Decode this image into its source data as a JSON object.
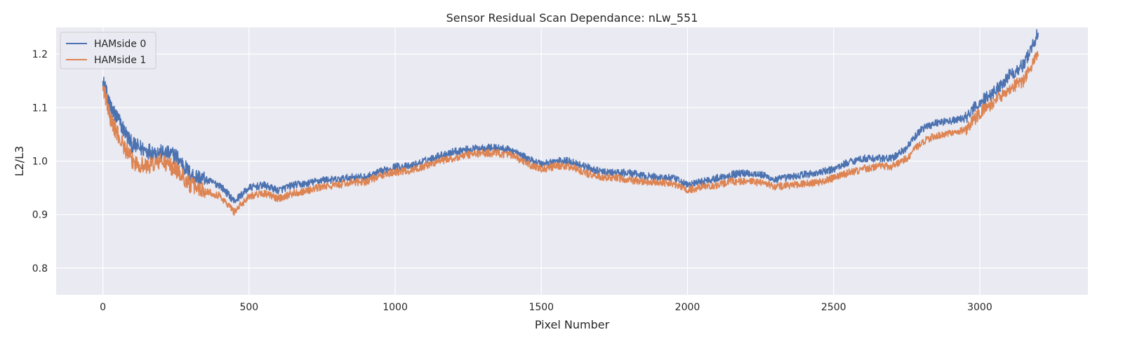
{
  "chart_data": {
    "type": "line",
    "title": "Sensor Residual Scan Dependance: nLw_551",
    "xlabel": "Pixel Number",
    "ylabel": "L2/L3",
    "xlim": [
      -160,
      3370
    ],
    "ylim": [
      0.75,
      1.25
    ],
    "xticks": [
      0,
      500,
      1000,
      1500,
      2000,
      2500,
      3000
    ],
    "yticks": [
      0.8,
      0.9,
      1.0,
      1.1,
      1.2
    ],
    "xtick_labels": [
      "0",
      "500",
      "1000",
      "1500",
      "2000",
      "2500",
      "3000"
    ],
    "ytick_labels": [
      "0.8",
      "0.9",
      "1.0",
      "1.1",
      "1.2"
    ],
    "grid": true,
    "legend_position": "top-left",
    "background_color": "#eaeaf2",
    "grid_color": "#ffffff",
    "series": [
      {
        "name": "HAMside 0",
        "color": "#4c72b0",
        "x": [
          0,
          25,
          50,
          100,
          150,
          200,
          250,
          300,
          350,
          400,
          450,
          500,
          550,
          600,
          650,
          700,
          750,
          800,
          850,
          900,
          950,
          1000,
          1050,
          1100,
          1150,
          1200,
          1250,
          1300,
          1350,
          1400,
          1450,
          1500,
          1550,
          1600,
          1650,
          1700,
          1750,
          1800,
          1850,
          1900,
          1950,
          2000,
          2050,
          2100,
          2150,
          2200,
          2250,
          2300,
          2350,
          2400,
          2450,
          2500,
          2550,
          2600,
          2650,
          2700,
          2750,
          2800,
          2850,
          2900,
          2950,
          3000,
          3050,
          3100,
          3150,
          3200
        ],
        "values": [
          1.15,
          1.1,
          1.08,
          1.03,
          1.02,
          1.015,
          1.01,
          0.975,
          0.965,
          0.955,
          0.925,
          0.95,
          0.955,
          0.945,
          0.955,
          0.958,
          0.965,
          0.965,
          0.97,
          0.97,
          0.98,
          0.99,
          0.99,
          1.0,
          1.01,
          1.018,
          1.022,
          1.025,
          1.025,
          1.02,
          1.005,
          0.995,
          1.0,
          1.0,
          0.99,
          0.98,
          0.978,
          0.978,
          0.972,
          0.97,
          0.968,
          0.955,
          0.962,
          0.968,
          0.975,
          0.978,
          0.975,
          0.965,
          0.97,
          0.975,
          0.978,
          0.985,
          0.998,
          1.005,
          1.005,
          1.005,
          1.025,
          1.06,
          1.072,
          1.075,
          1.08,
          1.11,
          1.13,
          1.16,
          1.18,
          1.24
        ]
      },
      {
        "name": "HAMside 1",
        "color": "#dd8452",
        "x": [
          0,
          25,
          50,
          100,
          150,
          200,
          250,
          300,
          350,
          400,
          450,
          500,
          550,
          600,
          650,
          700,
          750,
          800,
          850,
          900,
          950,
          1000,
          1050,
          1100,
          1150,
          1200,
          1250,
          1300,
          1350,
          1400,
          1450,
          1500,
          1550,
          1600,
          1650,
          1700,
          1750,
          1800,
          1850,
          1900,
          1950,
          2000,
          2050,
          2100,
          2150,
          2200,
          2250,
          2300,
          2350,
          2400,
          2450,
          2500,
          2550,
          2600,
          2650,
          2700,
          2750,
          2800,
          2850,
          2900,
          2950,
          3000,
          3050,
          3100,
          3150,
          3200
        ],
        "values": [
          1.14,
          1.08,
          1.05,
          1.0,
          0.99,
          1.0,
          0.985,
          0.955,
          0.945,
          0.935,
          0.905,
          0.935,
          0.94,
          0.93,
          0.94,
          0.945,
          0.952,
          0.955,
          0.96,
          0.962,
          0.972,
          0.98,
          0.982,
          0.99,
          1.0,
          1.005,
          1.012,
          1.015,
          1.015,
          1.01,
          0.995,
          0.985,
          0.99,
          0.99,
          0.978,
          0.97,
          0.968,
          0.965,
          0.962,
          0.96,
          0.958,
          0.945,
          0.952,
          0.955,
          0.962,
          0.962,
          0.96,
          0.952,
          0.955,
          0.958,
          0.96,
          0.968,
          0.978,
          0.985,
          0.99,
          0.99,
          1.005,
          1.035,
          1.048,
          1.052,
          1.058,
          1.09,
          1.11,
          1.135,
          1.15,
          1.2
        ]
      }
    ]
  }
}
